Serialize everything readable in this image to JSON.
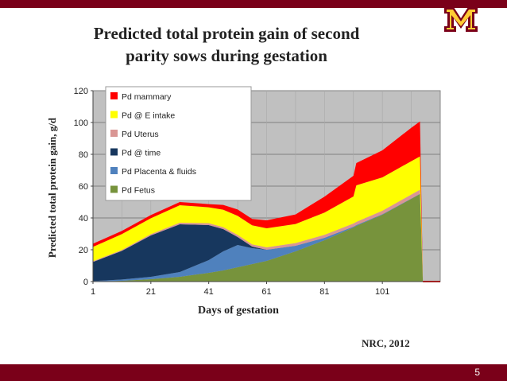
{
  "slide": {
    "title_line1": "Predicted total protein gain of second",
    "title_line2": "parity sows during gestation",
    "ylabel": "Predicted total protein gain, g/d",
    "xlabel": "Days of gestation",
    "source": "NRC, 2012",
    "page_number": "5",
    "colors": {
      "maroon": "#7a0019",
      "gold": "#ffcc33"
    }
  },
  "chart_data": {
    "type": "area",
    "x": [
      1,
      11,
      21,
      31,
      41,
      46,
      51,
      56,
      61,
      71,
      81,
      91,
      92,
      101,
      111,
      114,
      115,
      121
    ],
    "yticks": [
      0,
      20,
      40,
      60,
      80,
      100,
      120
    ],
    "xticks": [
      1,
      21,
      41,
      61,
      81,
      101
    ],
    "ylim": [
      0,
      120
    ],
    "xlim": [
      1,
      121
    ],
    "grid": true,
    "legend_position": "top-left",
    "series": [
      {
        "name": "Pd Fetus",
        "color": "#77933c",
        "values": [
          0.1,
          0.5,
          1.5,
          3,
          5.5,
          7,
          9,
          11,
          13,
          19,
          26,
          34,
          35,
          42,
          52,
          55,
          0,
          0
        ]
      },
      {
        "name": "Pd Placenta & fluids",
        "color": "#4f81bd",
        "values": [
          0.2,
          0.8,
          1.5,
          3,
          8,
          12,
          14,
          10,
          7,
          3.5,
          1.5,
          0.5,
          0.5,
          0.3,
          0.2,
          0.2,
          0,
          0
        ]
      },
      {
        "name": "Pd @ time",
        "color": "#17375e",
        "values": [
          12,
          18,
          26,
          30,
          22,
          14,
          5,
          1,
          0,
          0,
          0,
          0,
          0,
          0,
          0,
          0,
          0,
          0
        ]
      },
      {
        "name": "Pd Uterus",
        "color": "#d99694",
        "values": [
          0.5,
          0.6,
          0.8,
          1,
          1.2,
          1.2,
          1.3,
          1.4,
          1.5,
          1.7,
          1.9,
          2,
          2,
          2.2,
          2.5,
          2.5,
          0,
          0
        ]
      },
      {
        "name": "Pd @ E intake",
        "color": "#ffff00",
        "values": [
          9,
          10,
          10,
          11,
          10,
          11,
          12,
          12,
          12,
          12,
          14,
          17,
          23,
          21,
          21,
          21,
          0,
          0
        ]
      },
      {
        "name": "Pd mammary",
        "color": "#ff0000",
        "values": [
          2,
          2,
          2,
          2,
          2,
          3,
          4,
          4,
          5,
          6,
          10,
          13,
          14,
          17,
          21,
          22,
          0,
          0
        ]
      }
    ],
    "legend_order": [
      "Pd mammary",
      "Pd @ E intake",
      "Pd Uterus",
      "Pd @ time",
      "Pd Placenta & fluids",
      "Pd Fetus"
    ]
  }
}
